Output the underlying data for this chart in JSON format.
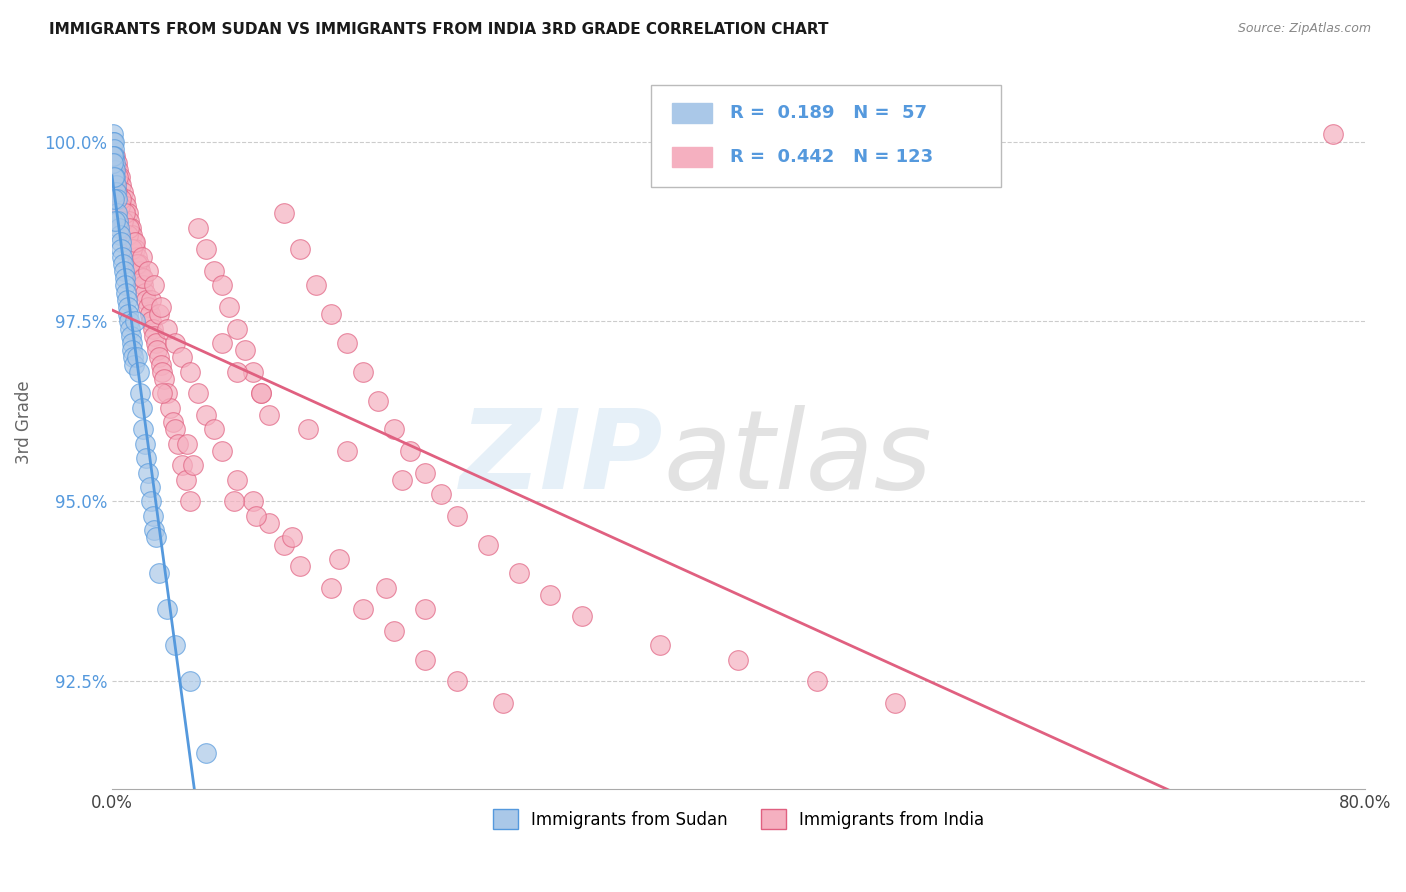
{
  "title": "IMMIGRANTS FROM SUDAN VS IMMIGRANTS FROM INDIA 3RD GRADE CORRELATION CHART",
  "source": "Source: ZipAtlas.com",
  "ylabel": "3rd Grade",
  "xlim": [
    0.0,
    80.0
  ],
  "ylim": [
    91.0,
    101.2
  ],
  "yticks": [
    92.5,
    95.0,
    97.5,
    100.0
  ],
  "xtick_positions": [
    0.0,
    16.0,
    32.0,
    48.0,
    64.0,
    80.0
  ],
  "sudan_color": "#aac8e8",
  "india_color": "#f5b0c0",
  "sudan_line_color": "#5599dd",
  "india_line_color": "#e06080",
  "legend_R_sudan": "0.189",
  "legend_N_sudan": "57",
  "legend_R_india": "0.442",
  "legend_N_india": "123",
  "legend_text_color": "#5599dd",
  "background_color": "#ffffff",
  "grid_color": "#cccccc",
  "sudan_scatter_x": [
    0.05,
    0.08,
    0.1,
    0.12,
    0.15,
    0.18,
    0.2,
    0.22,
    0.25,
    0.28,
    0.3,
    0.35,
    0.4,
    0.45,
    0.5,
    0.55,
    0.6,
    0.65,
    0.7,
    0.75,
    0.8,
    0.85,
    0.9,
    0.95,
    1.0,
    1.05,
    1.1,
    1.15,
    1.2,
    1.25,
    1.3,
    1.35,
    1.4,
    1.5,
    1.6,
    1.7,
    1.8,
    1.9,
    2.0,
    2.1,
    2.2,
    2.3,
    2.4,
    2.5,
    2.6,
    2.7,
    2.8,
    3.0,
    3.5,
    4.0,
    5.0,
    6.0,
    0.05,
    0.08,
    0.1,
    0.15,
    0.2
  ],
  "sudan_scatter_y": [
    100.1,
    100.0,
    100.0,
    99.9,
    99.8,
    99.7,
    99.6,
    99.5,
    99.4,
    99.3,
    99.2,
    99.0,
    98.9,
    98.8,
    98.7,
    98.6,
    98.5,
    98.4,
    98.3,
    98.2,
    98.1,
    98.0,
    97.9,
    97.8,
    97.7,
    97.6,
    97.5,
    97.4,
    97.3,
    97.2,
    97.1,
    97.0,
    96.9,
    97.5,
    97.0,
    96.8,
    96.5,
    96.3,
    96.0,
    95.8,
    95.6,
    95.4,
    95.2,
    95.0,
    94.8,
    94.6,
    94.5,
    94.0,
    93.5,
    93.0,
    92.5,
    91.5,
    99.8,
    99.7,
    99.5,
    99.2,
    98.9
  ],
  "india_scatter_x": [
    0.2,
    0.3,
    0.4,
    0.5,
    0.6,
    0.7,
    0.8,
    0.9,
    1.0,
    1.1,
    1.2,
    1.3,
    1.4,
    1.5,
    1.6,
    1.7,
    1.8,
    1.9,
    2.0,
    2.1,
    2.2,
    2.3,
    2.4,
    2.5,
    2.6,
    2.7,
    2.8,
    2.9,
    3.0,
    3.1,
    3.2,
    3.3,
    3.5,
    3.7,
    3.9,
    4.0,
    4.2,
    4.5,
    4.7,
    5.0,
    5.5,
    6.0,
    6.5,
    7.0,
    7.5,
    8.0,
    8.5,
    9.0,
    9.5,
    10.0,
    11.0,
    12.0,
    13.0,
    14.0,
    15.0,
    16.0,
    17.0,
    18.0,
    19.0,
    20.0,
    21.0,
    22.0,
    24.0,
    26.0,
    28.0,
    30.0,
    35.0,
    40.0,
    45.0,
    50.0,
    0.3,
    0.5,
    0.7,
    1.0,
    1.3,
    1.6,
    2.0,
    2.5,
    3.0,
    3.5,
    4.0,
    4.5,
    5.0,
    5.5,
    6.0,
    6.5,
    7.0,
    8.0,
    9.0,
    10.0,
    11.0,
    12.0,
    14.0,
    16.0,
    18.0,
    20.0,
    22.0,
    25.0,
    7.0,
    8.0,
    9.5,
    12.5,
    15.0,
    18.5,
    3.2,
    4.8,
    5.2,
    7.8,
    9.2,
    11.5,
    14.5,
    17.5,
    20.0,
    78.0,
    0.4,
    0.6,
    0.8,
    1.1,
    1.5,
    1.9,
    2.3,
    2.7,
    3.1
  ],
  "india_scatter_y": [
    99.8,
    99.7,
    99.6,
    99.5,
    99.4,
    99.3,
    99.2,
    99.1,
    99.0,
    98.9,
    98.8,
    98.7,
    98.6,
    98.5,
    98.4,
    98.3,
    98.2,
    98.1,
    98.0,
    97.9,
    97.8,
    97.7,
    97.6,
    97.5,
    97.4,
    97.3,
    97.2,
    97.1,
    97.0,
    96.9,
    96.8,
    96.7,
    96.5,
    96.3,
    96.1,
    96.0,
    95.8,
    95.5,
    95.3,
    95.0,
    98.8,
    98.5,
    98.2,
    98.0,
    97.7,
    97.4,
    97.1,
    96.8,
    96.5,
    96.2,
    99.0,
    98.5,
    98.0,
    97.6,
    97.2,
    96.8,
    96.4,
    96.0,
    95.7,
    95.4,
    95.1,
    94.8,
    94.4,
    94.0,
    93.7,
    93.4,
    93.0,
    92.8,
    92.5,
    92.2,
    99.3,
    99.1,
    98.9,
    98.7,
    98.5,
    98.3,
    98.1,
    97.8,
    97.6,
    97.4,
    97.2,
    97.0,
    96.8,
    96.5,
    96.2,
    96.0,
    95.7,
    95.3,
    95.0,
    94.7,
    94.4,
    94.1,
    93.8,
    93.5,
    93.2,
    92.8,
    92.5,
    92.2,
    97.2,
    96.8,
    96.5,
    96.0,
    95.7,
    95.3,
    96.5,
    95.8,
    95.5,
    95.0,
    94.8,
    94.5,
    94.2,
    93.8,
    93.5,
    100.1,
    99.5,
    99.2,
    99.0,
    98.8,
    98.6,
    98.4,
    98.2,
    98.0,
    97.7
  ]
}
